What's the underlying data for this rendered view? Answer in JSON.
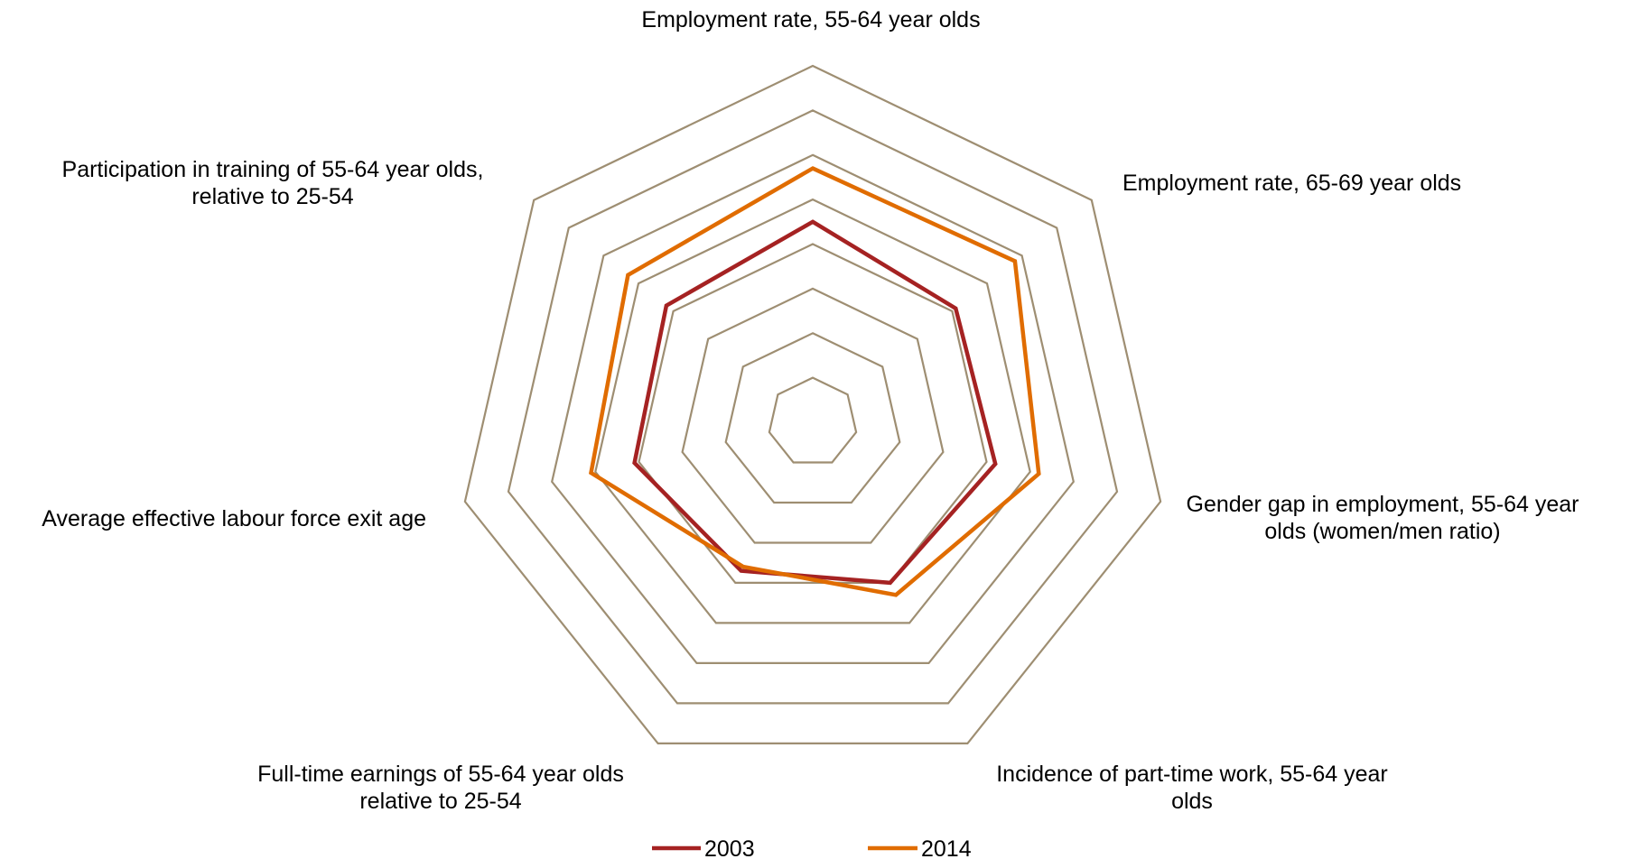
{
  "chart_data": {
    "type": "radar",
    "title": "",
    "axes": [
      {
        "label_lines": [
          "Employment rate, 55-64 year olds"
        ]
      },
      {
        "label_lines": [
          "Employment rate, 65-69 year olds"
        ]
      },
      {
        "label_lines": [
          "Gender gap in employment, 55-64 year",
          "olds (women/men ratio)"
        ]
      },
      {
        "label_lines": [
          "Incidence of part-time work, 55-64 year",
          "olds"
        ]
      },
      {
        "label_lines": [
          "Full-time earnings of 55-64 year olds",
          "relative to 25-54"
        ]
      },
      {
        "label_lines": [
          "Average effective labour force exit age"
        ]
      },
      {
        "label_lines": [
          "Participation in training of 55-64 year olds,",
          "relative to 25-54"
        ]
      }
    ],
    "grid_levels": 8,
    "range": [
      0,
      8
    ],
    "grid_color": "#9e8e72",
    "legend_position": "bottom",
    "series": [
      {
        "name": "2003",
        "color": "#a52222",
        "values": [
          4.5,
          4.1,
          4.2,
          4.0,
          3.7,
          4.1,
          4.2
        ]
      },
      {
        "name": "2014",
        "color": "#e06c00",
        "values": [
          5.7,
          5.8,
          5.2,
          4.3,
          3.6,
          5.1,
          5.3
        ]
      }
    ]
  }
}
